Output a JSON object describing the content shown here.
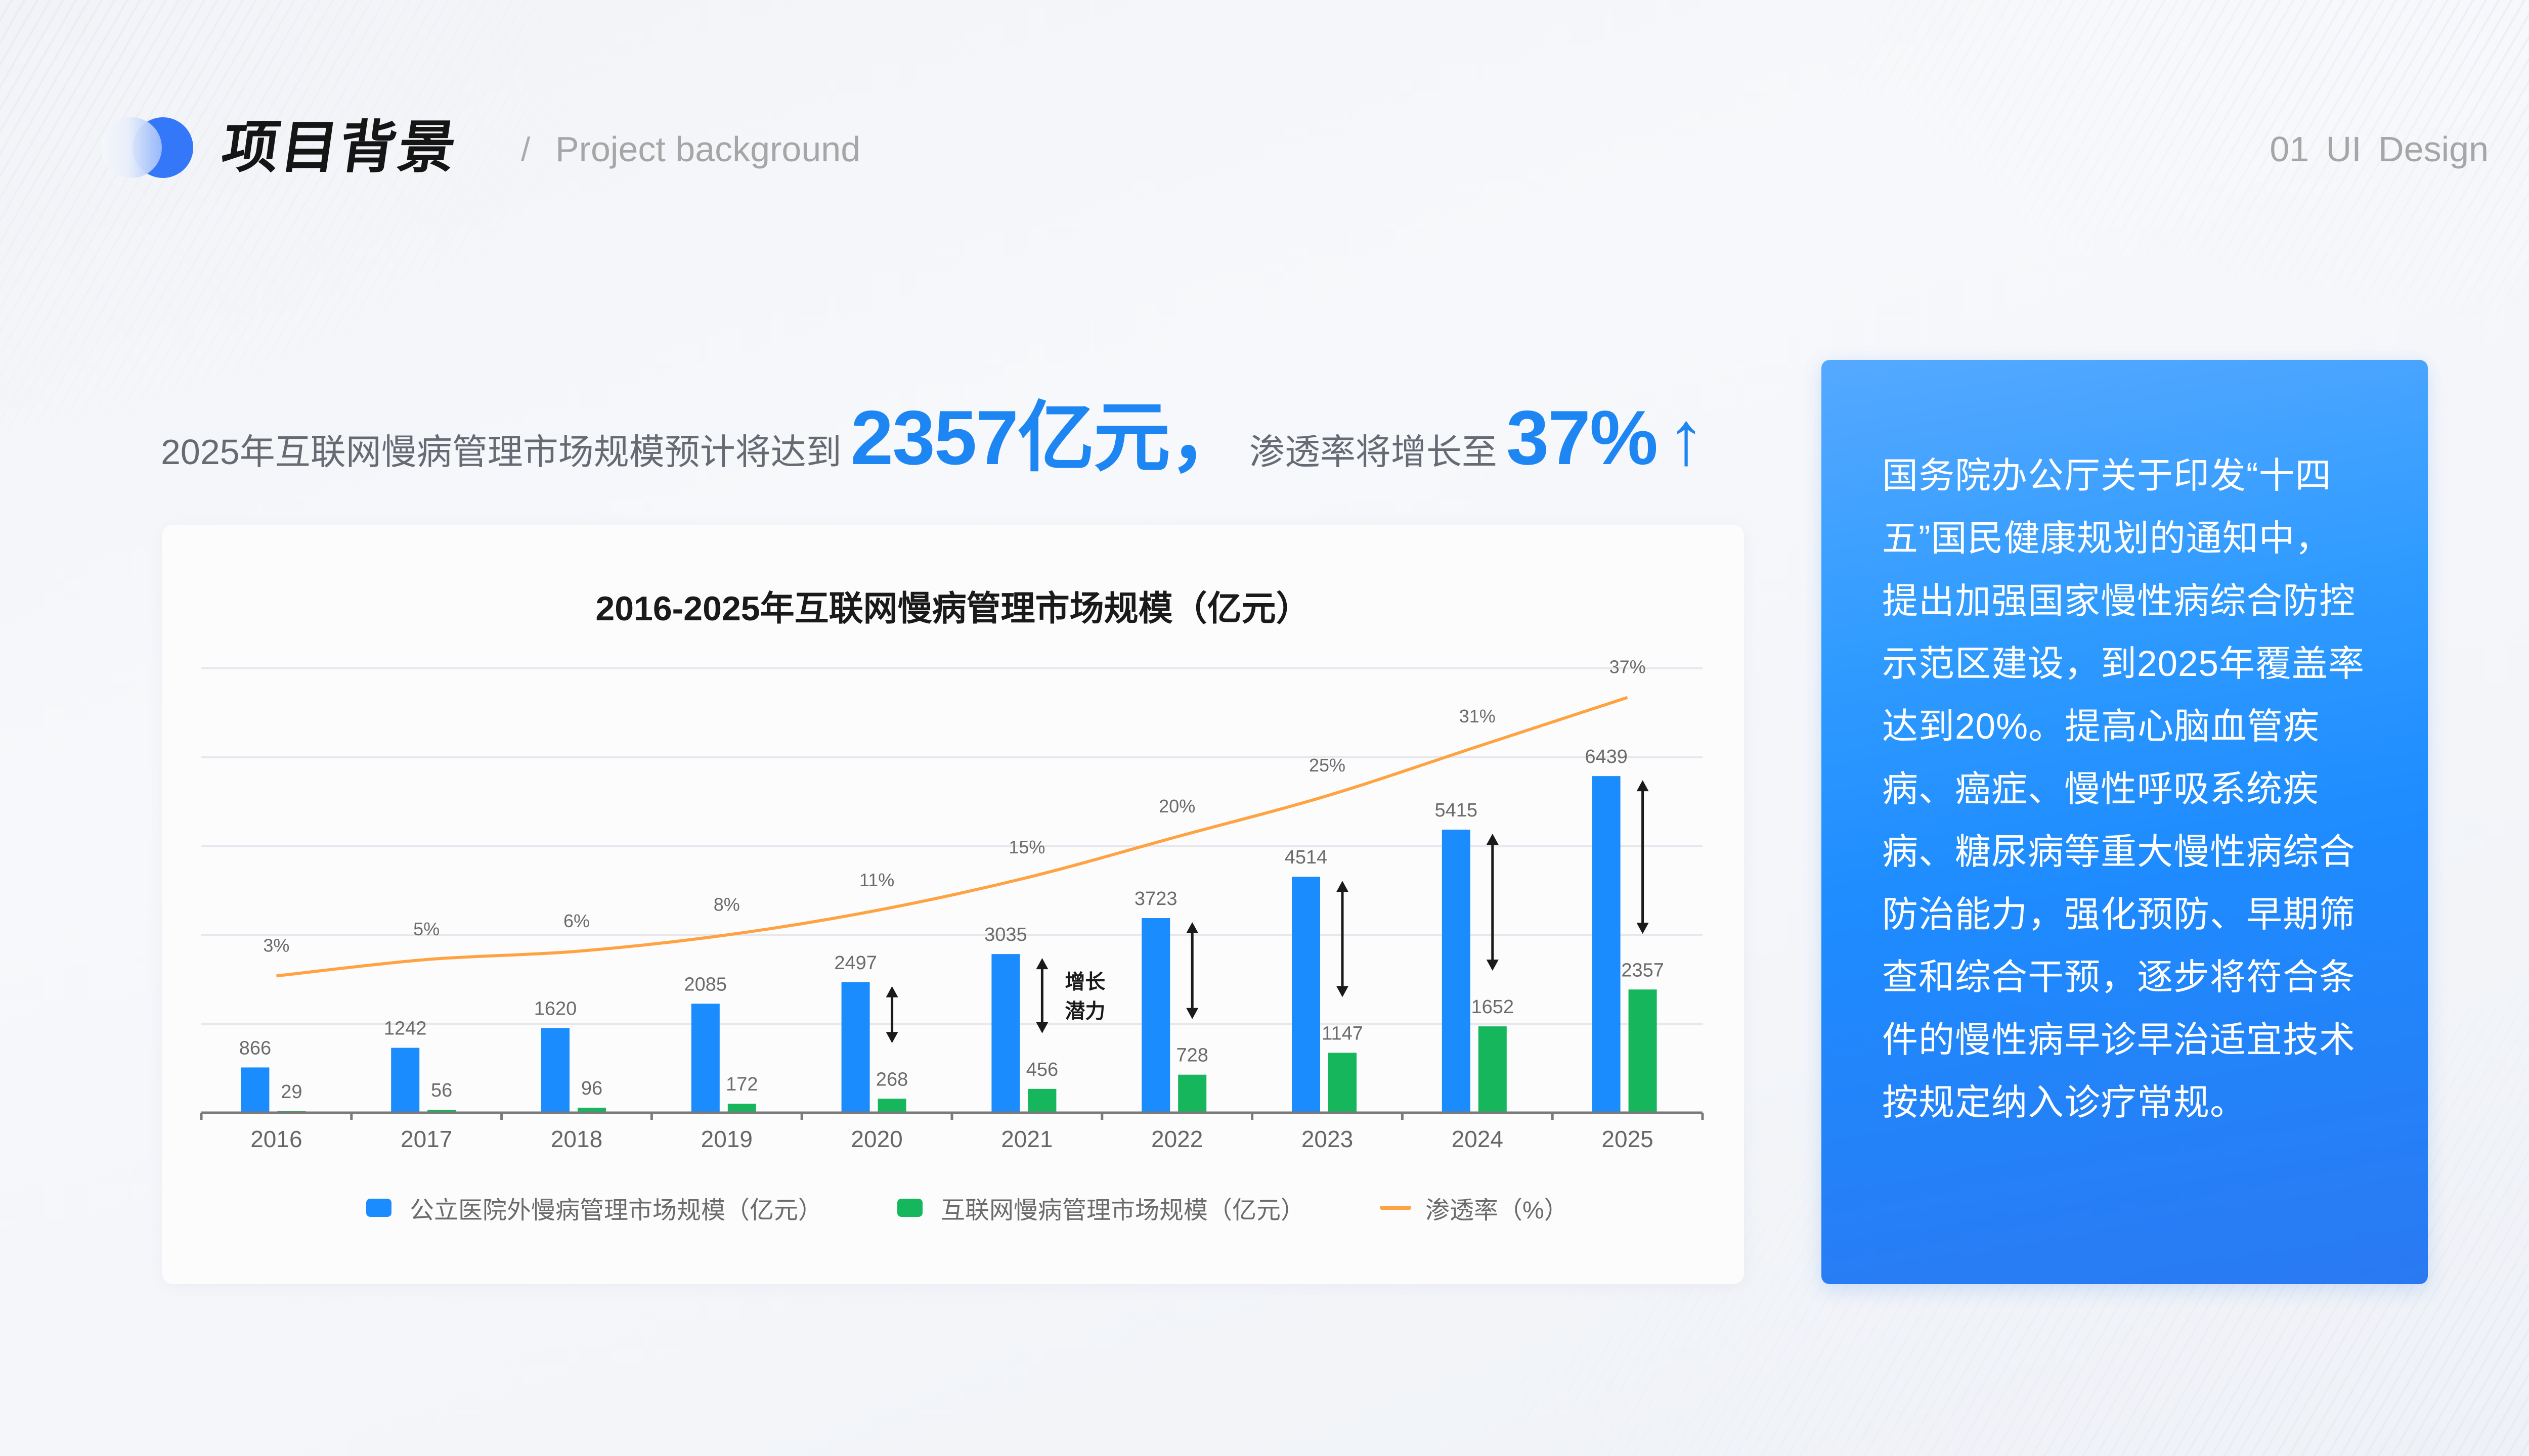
{
  "header": {
    "title": "项目背景",
    "separator": "/",
    "subtitle": "Project background",
    "page_label": "01  UI Design",
    "logo_icon": "overlapping-circles-icon"
  },
  "headline": {
    "prefix": "2025年互联网慢病管理市场规模预计将达到",
    "value_market": "2357亿元，",
    "middle": "渗透率将增长至",
    "value_rate": "37%",
    "arrow": "↑",
    "accent_color": "#1e86f2"
  },
  "side_panel": {
    "text": "国务院办公厅关于印发“十四五”国民健康规划的通知中，提出加强国家慢性病综合防控示范区建设，到2025年覆盖率达到20%。提高心脑血管疾病、癌症、慢性呼吸系统疾病、糖尿病等重大慢性病综合防治能力，强化预防、早期筛查和综合干预，逐步将符合条件的慢性病早诊早治适宜技术按规定纳入诊疗常规。",
    "lines": [
      "国务院办公厅关于印发“十四",
      "五”国民健康规划的通知中，",
      "提出加强国家慢性病综合防控",
      "示范区建设，到2025年覆盖率",
      "达到20%。提高心脑血管疾",
      "病、癌症、慢性呼吸系统疾",
      "病、糖尿病等重大慢性病综合",
      "防治能力，强化预防、早期筛",
      "查和综合干预，逐步将符合条",
      "件的慢性病早诊早治适宜技术",
      "按规定纳入诊疗常规。"
    ]
  },
  "chart_data": {
    "type": "bar",
    "title": "2016-2025年互联网慢病管理市场规模（亿元）",
    "xlabel": "",
    "ylabel": "",
    "categories": [
      "2016",
      "2017",
      "2018",
      "2019",
      "2020",
      "2021",
      "2022",
      "2023",
      "2024",
      "2025"
    ],
    "series": [
      {
        "name": "公立医院外慢病管理市场规模（亿元）",
        "type": "bar",
        "color": "#1b8cfd",
        "values": [
          866,
          1242,
          1620,
          2085,
          2497,
          3035,
          3723,
          4514,
          5415,
          6439
        ]
      },
      {
        "name": "互联网慢病管理市场规模（亿元）",
        "type": "bar",
        "color": "#16b65c",
        "values": [
          29,
          56,
          96,
          172,
          268,
          456,
          728,
          1147,
          1652,
          2357
        ]
      },
      {
        "name": "渗透率（%）",
        "type": "line",
        "color": "#ffa342",
        "axis": "secondary",
        "values": [
          3,
          5,
          6,
          8,
          11,
          15,
          20,
          25,
          31,
          37
        ],
        "labels": [
          "3%",
          "5%",
          "6%",
          "8%",
          "11%",
          "15%",
          "20%",
          "25%",
          "31%",
          "37%"
        ]
      }
    ],
    "annotations": [
      {
        "text": "增长潜力",
        "lines": [
          "增长",
          "潜力"
        ],
        "category": "2021",
        "type": "double-arrow"
      }
    ],
    "gap_arrow_categories": [
      "2020",
      "2021",
      "2022",
      "2023",
      "2024",
      "2025"
    ],
    "ylim": [
      0,
      8500
    ],
    "y2lim": [
      0,
      40
    ],
    "grid": true,
    "axis_labels_hidden": true,
    "legend_position": "bottom"
  }
}
